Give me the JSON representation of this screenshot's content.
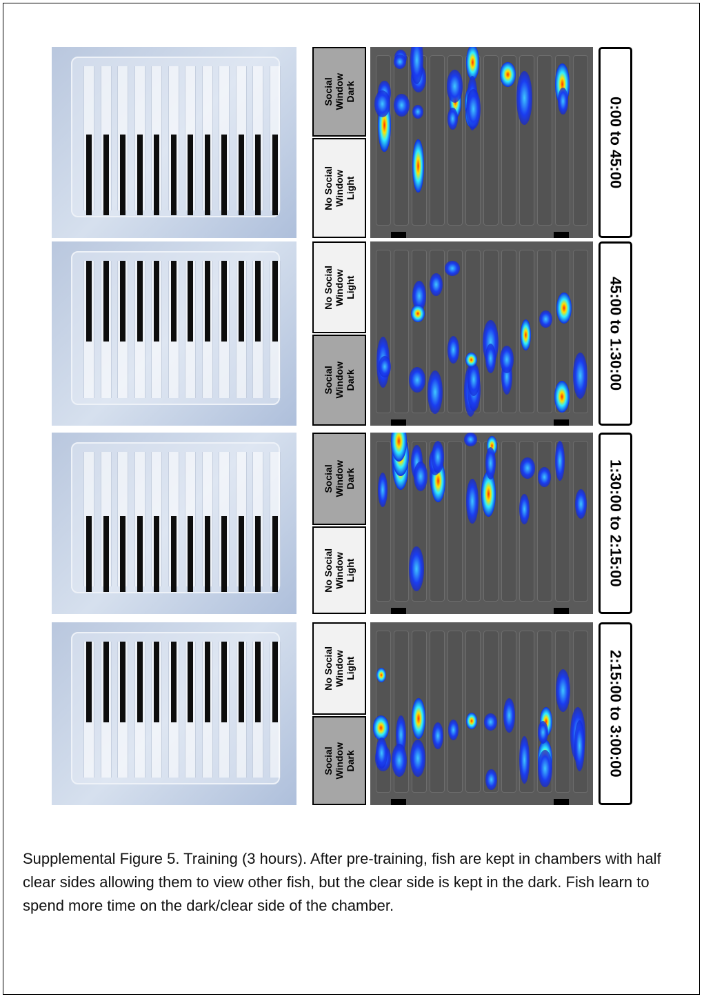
{
  "figure": {
    "panels": [
      {
        "top_label": [
          "Social",
          "Window",
          "Dark"
        ],
        "bottom_label": [
          "No Social",
          "Window",
          "Light"
        ],
        "time": "0:00 to 45:00"
      },
      {
        "top_label": [
          "No Social",
          "Window",
          "Light"
        ],
        "bottom_label": [
          "Social",
          "Window",
          "Dark"
        ],
        "time": "45:00 to 1:30:00"
      },
      {
        "top_label": [
          "Social",
          "Window",
          "Dark"
        ],
        "bottom_label": [
          "No Social",
          "Window",
          "Light"
        ],
        "time": "1:30:00 to 2:15:00"
      },
      {
        "top_label": [
          "No Social",
          "Window",
          "Light"
        ],
        "bottom_label": [
          "Social",
          "Window",
          "Dark"
        ],
        "time": "2:15:00 to 3:00:00"
      }
    ],
    "caption": "Supplemental Figure 5.  Training (3 hours).  After pre-training, fish are kept in chambers with half clear sides allowing them to view other fish, but the clear side is kept in the dark. Fish learn to spend more time on the dark/clear side of the chamber."
  }
}
